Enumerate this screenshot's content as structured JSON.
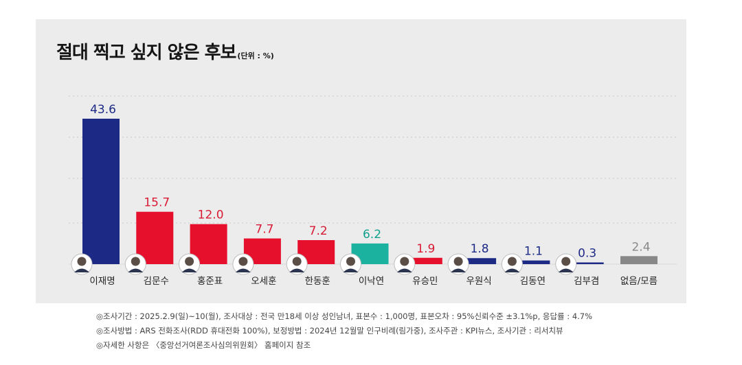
{
  "title": "절대 찍고 싶지 않은 후보",
  "unit_label": "(단위 : %)",
  "chart_data": {
    "type": "bar",
    "title": "절대 찍고 싶지 않은 후보",
    "unit": "%",
    "categories": [
      "이재명",
      "김문수",
      "홍준표",
      "오세훈",
      "한동훈",
      "이낙연",
      "유승민",
      "우원식",
      "김동연",
      "김부겸",
      "없음/모름"
    ],
    "values": [
      43.6,
      15.7,
      12.0,
      7.7,
      7.2,
      6.2,
      1.9,
      1.8,
      1.1,
      0.3,
      2.4
    ],
    "value_labels": [
      "43.6",
      "15.7",
      "12.0",
      "7.7",
      "7.2",
      "6.2",
      "1.9",
      "1.8",
      "1.1",
      "0.3",
      "2.4"
    ],
    "bar_colors": [
      "#1c2a86",
      "#e60f2c",
      "#e60f2c",
      "#e60f2c",
      "#e60f2c",
      "#1bb39f",
      "#e60f2c",
      "#1c2a86",
      "#1c2a86",
      "#1c2a86",
      "#888888"
    ],
    "label_colors": [
      "#1c2a86",
      "#d81a34",
      "#d81a34",
      "#d81a34",
      "#d81a34",
      "#10a08c",
      "#d81a34",
      "#1c2a86",
      "#1c2a86",
      "#1c2a86",
      "#888888"
    ],
    "ylim": [
      0,
      45
    ],
    "grid": true,
    "legend": "none"
  },
  "notes": [
    "◎조사기간 : 2025.2.9(일)~10(월), 조사대상 : 전국 만18세 이상 성인남녀, 표본수 : 1,000명, 표본오차 : 95%신뢰수준 ±3.1%p, 응답률 : 4.7%",
    "◎조사방법 : ARS 전화조사(RDD 휴대전화 100%), 보정방법 : 2024년 12월말 인구비례(림가중), 조사주관 : KPI뉴스, 조사기관 : 리서치뷰",
    "◎자세한 사항은 〈중앙선거여론조사심의위원회〉 홈페이지 참조"
  ]
}
